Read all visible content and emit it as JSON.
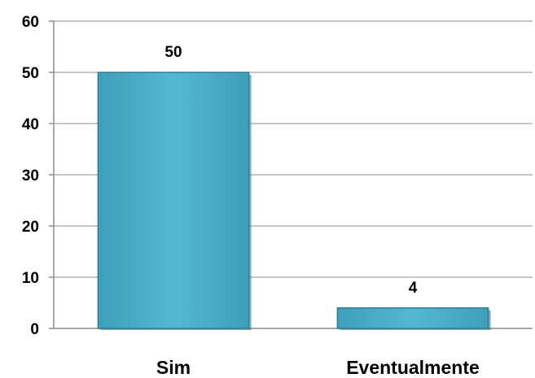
{
  "chart_data": {
    "type": "bar",
    "title": "",
    "xlabel": "",
    "ylabel": "",
    "categories": [
      "Sim",
      "Eventualmente"
    ],
    "values": [
      50,
      4
    ],
    "data_labels": [
      "50",
      "4"
    ],
    "ylim": [
      0,
      60
    ],
    "yticks": [
      0,
      10,
      20,
      30,
      40,
      50,
      60
    ],
    "grid": true,
    "legend": "none",
    "colors": {
      "bar_fill": "#4bacc6",
      "bar_edge": "#2f7f94",
      "grid": "#8c8c8c"
    }
  }
}
